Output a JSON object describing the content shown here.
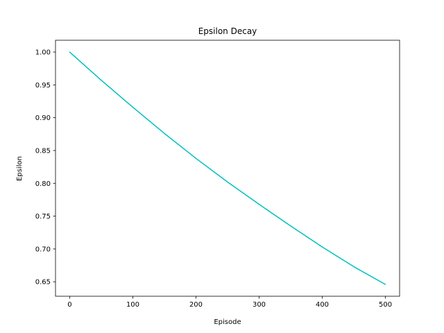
{
  "chart_data": {
    "type": "line",
    "title": "Epsilon Decay",
    "xlabel": "Episode",
    "ylabel": "Epsilon",
    "xlim": [
      -22.5,
      522.5
    ],
    "ylim": [
      0.628,
      1.018
    ],
    "xticks": [
      0,
      100,
      200,
      300,
      400,
      500
    ],
    "xtick_labels": [
      "0",
      "100",
      "200",
      "300",
      "400",
      "500"
    ],
    "yticks": [
      0.65,
      0.7,
      0.75,
      0.8,
      0.85,
      0.9,
      0.95,
      1.0
    ],
    "ytick_labels": [
      "0.65",
      "0.70",
      "0.75",
      "0.80",
      "0.85",
      "0.90",
      "0.95",
      "1.00"
    ],
    "grid": false,
    "series": [
      {
        "color": "#00bfbf",
        "x": [
          0,
          50,
          100,
          150,
          200,
          250,
          300,
          350,
          400,
          450,
          500
        ],
        "y": [
          1.0,
          0.957,
          0.916,
          0.876,
          0.838,
          0.802,
          0.768,
          0.735,
          0.703,
          0.673,
          0.646
        ]
      }
    ]
  }
}
